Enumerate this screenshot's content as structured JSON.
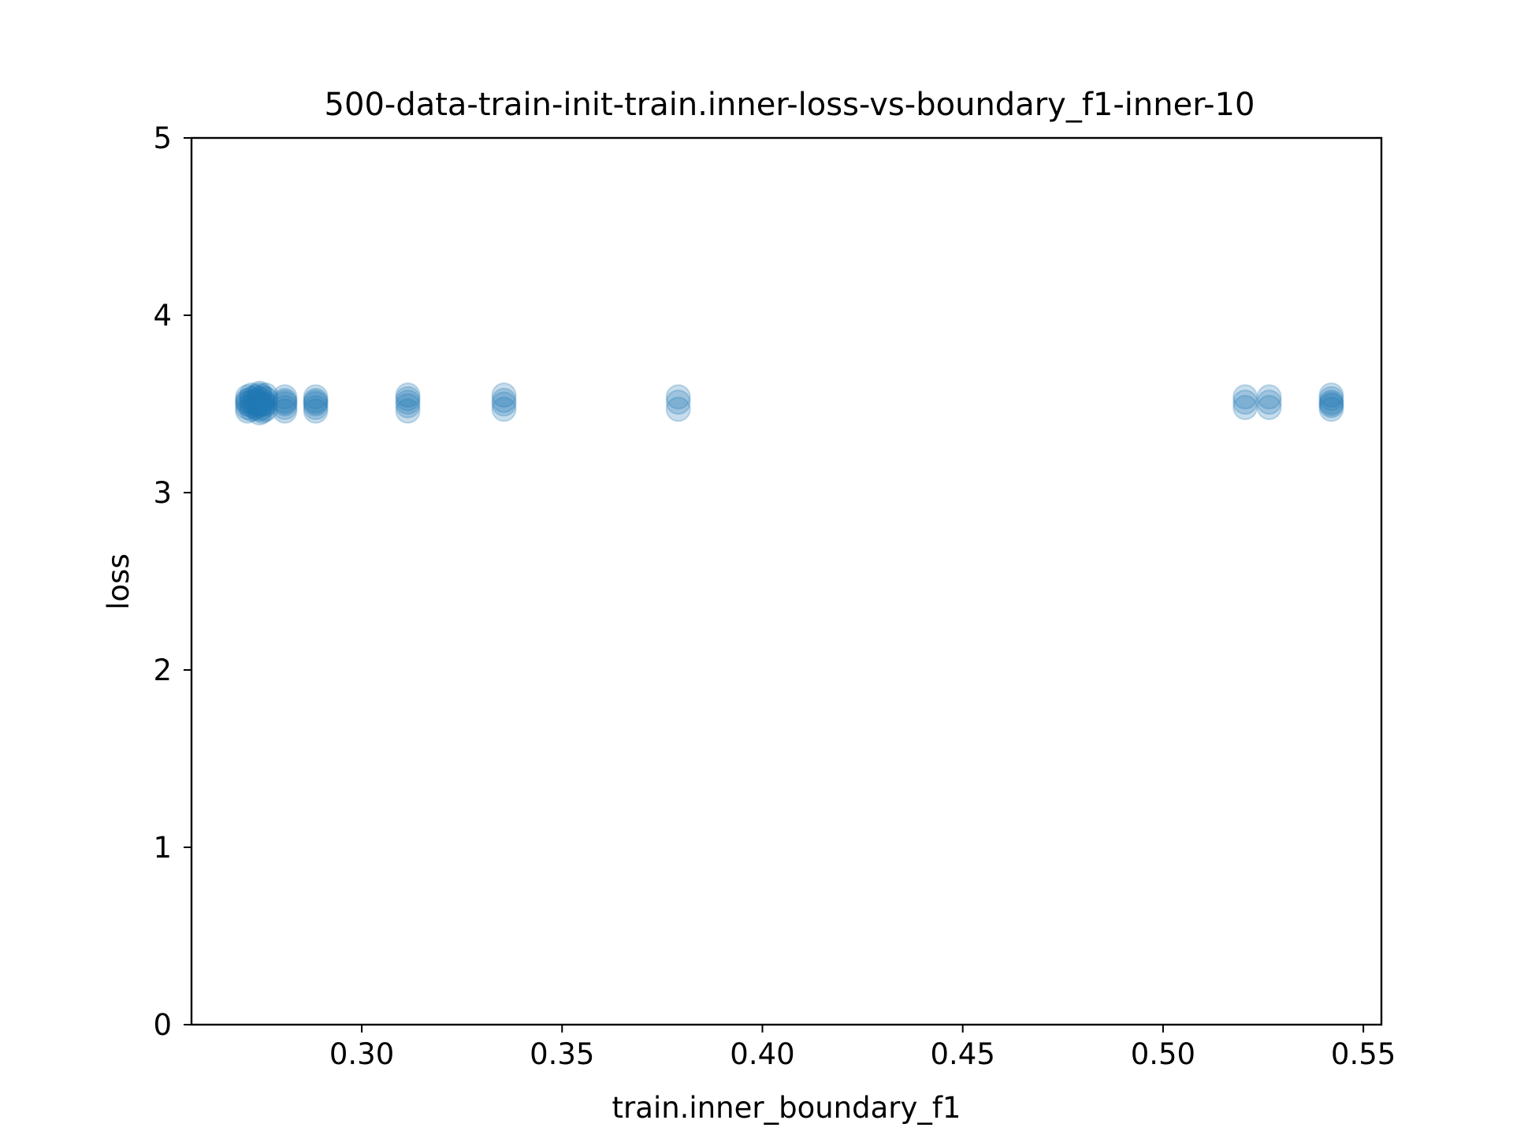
{
  "chart_data": {
    "type": "scatter",
    "title": "500-data-train-init-train.inner-loss-vs-boundary_f1-inner-10",
    "xlabel": "train.inner_boundary_f1",
    "ylabel": "loss",
    "xlim": [
      0.2575,
      0.5545
    ],
    "ylim": [
      0,
      5
    ],
    "xticks": [
      0.3,
      0.35,
      0.4,
      0.45,
      0.5,
      0.55
    ],
    "xtick_labels": [
      "0.30",
      "0.35",
      "0.40",
      "0.45",
      "0.50",
      "0.55"
    ],
    "yticks": [
      0,
      1,
      2,
      3,
      4,
      5
    ],
    "ytick_labels": [
      "0",
      "1",
      "2",
      "3",
      "4",
      "5"
    ],
    "grid": false,
    "legend": "none",
    "marker_color": "#1f77b4",
    "marker_alpha": 0.25,
    "series": [
      {
        "x": [
          0.2715,
          0.2715,
          0.2715,
          0.2715,
          0.2715,
          0.2715,
          0.2725,
          0.2725,
          0.2725,
          0.2725,
          0.2725,
          0.2735,
          0.2735,
          0.2735,
          0.2735,
          0.2745,
          0.2745,
          0.2745,
          0.2745,
          0.2745,
          0.2745,
          0.2745,
          0.2745,
          0.2752,
          0.2752,
          0.2752,
          0.2752,
          0.2752,
          0.2752,
          0.276,
          0.276,
          0.276,
          0.276,
          0.2808,
          0.2808,
          0.2808,
          0.2808,
          0.2808,
          0.2808,
          0.2885,
          0.2885,
          0.2885,
          0.2885,
          0.2885,
          0.2885,
          0.3115,
          0.3115,
          0.3115,
          0.3115,
          0.3115,
          0.3355,
          0.3355,
          0.3355,
          0.3355,
          0.379,
          0.379,
          0.379,
          0.5205,
          0.5205,
          0.5205,
          0.5265,
          0.5265,
          0.5265,
          0.542,
          0.542,
          0.542,
          0.542,
          0.542,
          0.542
        ],
        "y": [
          3.46,
          3.48,
          3.5,
          3.52,
          3.54,
          3.51,
          3.47,
          3.49,
          3.51,
          3.53,
          3.55,
          3.48,
          3.5,
          3.52,
          3.54,
          3.45,
          3.47,
          3.49,
          3.5,
          3.51,
          3.53,
          3.55,
          3.56,
          3.46,
          3.48,
          3.5,
          3.52,
          3.54,
          3.5,
          3.47,
          3.5,
          3.53,
          3.55,
          3.46,
          3.48,
          3.5,
          3.52,
          3.54,
          3.51,
          3.46,
          3.48,
          3.5,
          3.52,
          3.54,
          3.51,
          3.46,
          3.49,
          3.51,
          3.53,
          3.55,
          3.47,
          3.5,
          3.52,
          3.55,
          3.47,
          3.51,
          3.54,
          3.48,
          3.51,
          3.54,
          3.48,
          3.51,
          3.54,
          3.47,
          3.49,
          3.5,
          3.51,
          3.53,
          3.55
        ]
      }
    ]
  }
}
